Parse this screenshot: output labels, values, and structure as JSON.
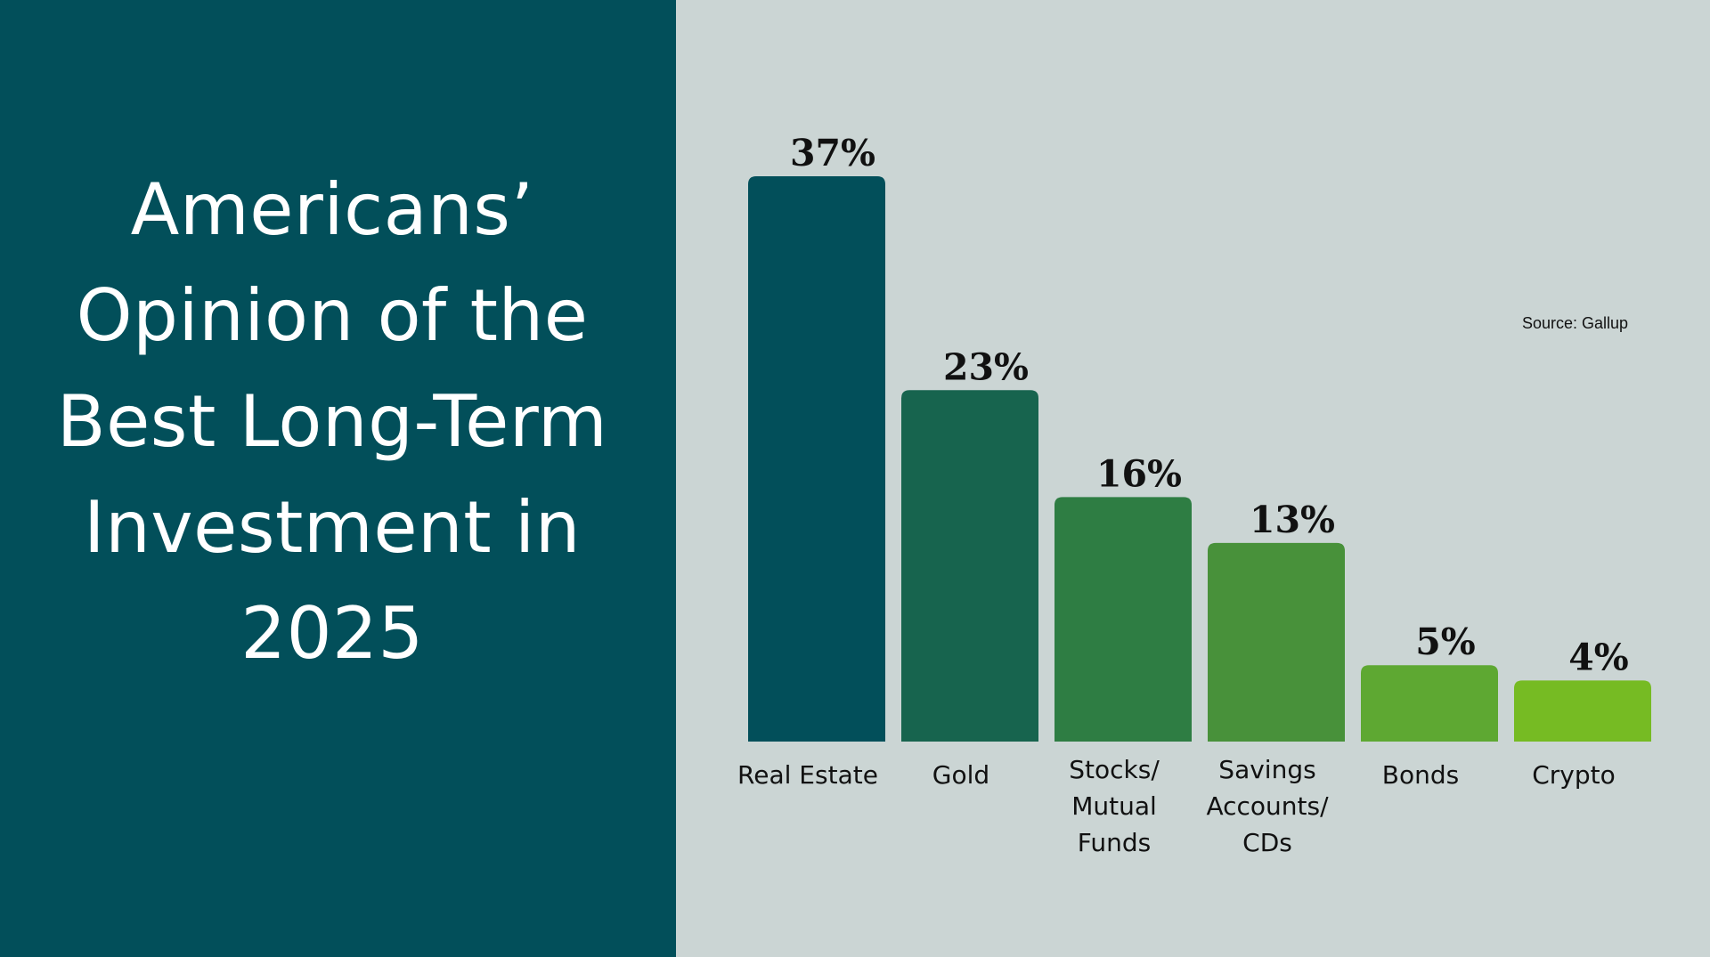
{
  "title": "Americans’ Opinion of the Best Long-Term Investment in 2025",
  "source": "Source: Gallup",
  "colors": {
    "left_panel": "#024f5a",
    "right_panel": "#cbd5d4",
    "bars": [
      "#024f5a",
      "#17644e",
      "#2e7d43",
      "#48913a",
      "#5ea832",
      "#76bb23"
    ]
  },
  "chart_data": {
    "type": "bar",
    "categories": [
      "Real Estate",
      "Gold",
      "Stocks/ Mutual Funds",
      "Savings Accounts/ CDs",
      "Bonds",
      "Crypto"
    ],
    "category_lines": [
      [
        "Real Estate"
      ],
      [
        "Gold"
      ],
      [
        "Stocks/",
        "Mutual",
        "Funds"
      ],
      [
        "Savings",
        "Accounts/",
        "CDs"
      ],
      [
        "Bonds"
      ],
      [
        "Crypto"
      ]
    ],
    "values": [
      37,
      23,
      16,
      13,
      5,
      4
    ],
    "value_labels": [
      "37%",
      "23%",
      "16%",
      "13%",
      "5%",
      "4%"
    ],
    "title": "",
    "xlabel": "",
    "ylabel": "",
    "ylim": [
      0,
      37
    ],
    "grid": false,
    "legend": "none"
  }
}
